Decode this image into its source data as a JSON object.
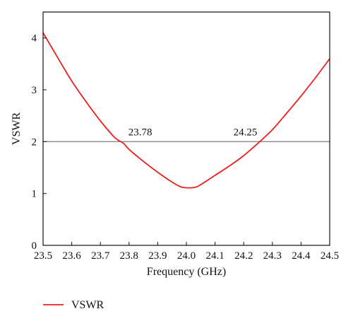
{
  "chart_data": {
    "type": "line",
    "xlabel": "Frequency (GHz)",
    "ylabel": "VSWR",
    "xlim": [
      23.5,
      24.5
    ],
    "ylim": [
      0,
      4.5
    ],
    "xticks": [
      23.5,
      23.6,
      23.7,
      23.8,
      23.9,
      24.0,
      24.1,
      24.2,
      24.3,
      24.4,
      24.5
    ],
    "xtick_labels": [
      "23.5",
      "23.6",
      "23.7",
      "23.8",
      "23.9",
      "24.0",
      "24.1",
      "24.2",
      "24.3",
      "24.4",
      "24.5"
    ],
    "yticks": [
      0,
      1,
      2,
      3,
      4
    ],
    "ytick_labels": [
      "0",
      "1",
      "2",
      "3",
      "4"
    ],
    "grid": false,
    "legend": "bottom-left",
    "reference_line": {
      "y": 2,
      "color": "#8a8a8a"
    },
    "annotations": [
      {
        "text": "23.78",
        "x": 23.78,
        "y": 2
      },
      {
        "text": "24.25",
        "x": 24.25,
        "y": 2
      }
    ],
    "series": [
      {
        "name": "VSWR",
        "color": "#e8211d",
        "x": [
          23.5,
          23.55,
          23.6,
          23.65,
          23.7,
          23.75,
          23.78,
          23.8,
          23.85,
          23.9,
          23.95,
          23.98,
          24.0,
          24.03,
          24.05,
          24.1,
          24.15,
          24.2,
          24.25,
          24.3,
          24.35,
          24.4,
          24.45,
          24.5
        ],
        "values": [
          4.1,
          3.63,
          3.17,
          2.77,
          2.4,
          2.08,
          1.97,
          1.85,
          1.62,
          1.41,
          1.22,
          1.13,
          1.11,
          1.12,
          1.17,
          1.35,
          1.53,
          1.73,
          1.97,
          2.23,
          2.55,
          2.88,
          3.23,
          3.6
        ]
      }
    ]
  }
}
